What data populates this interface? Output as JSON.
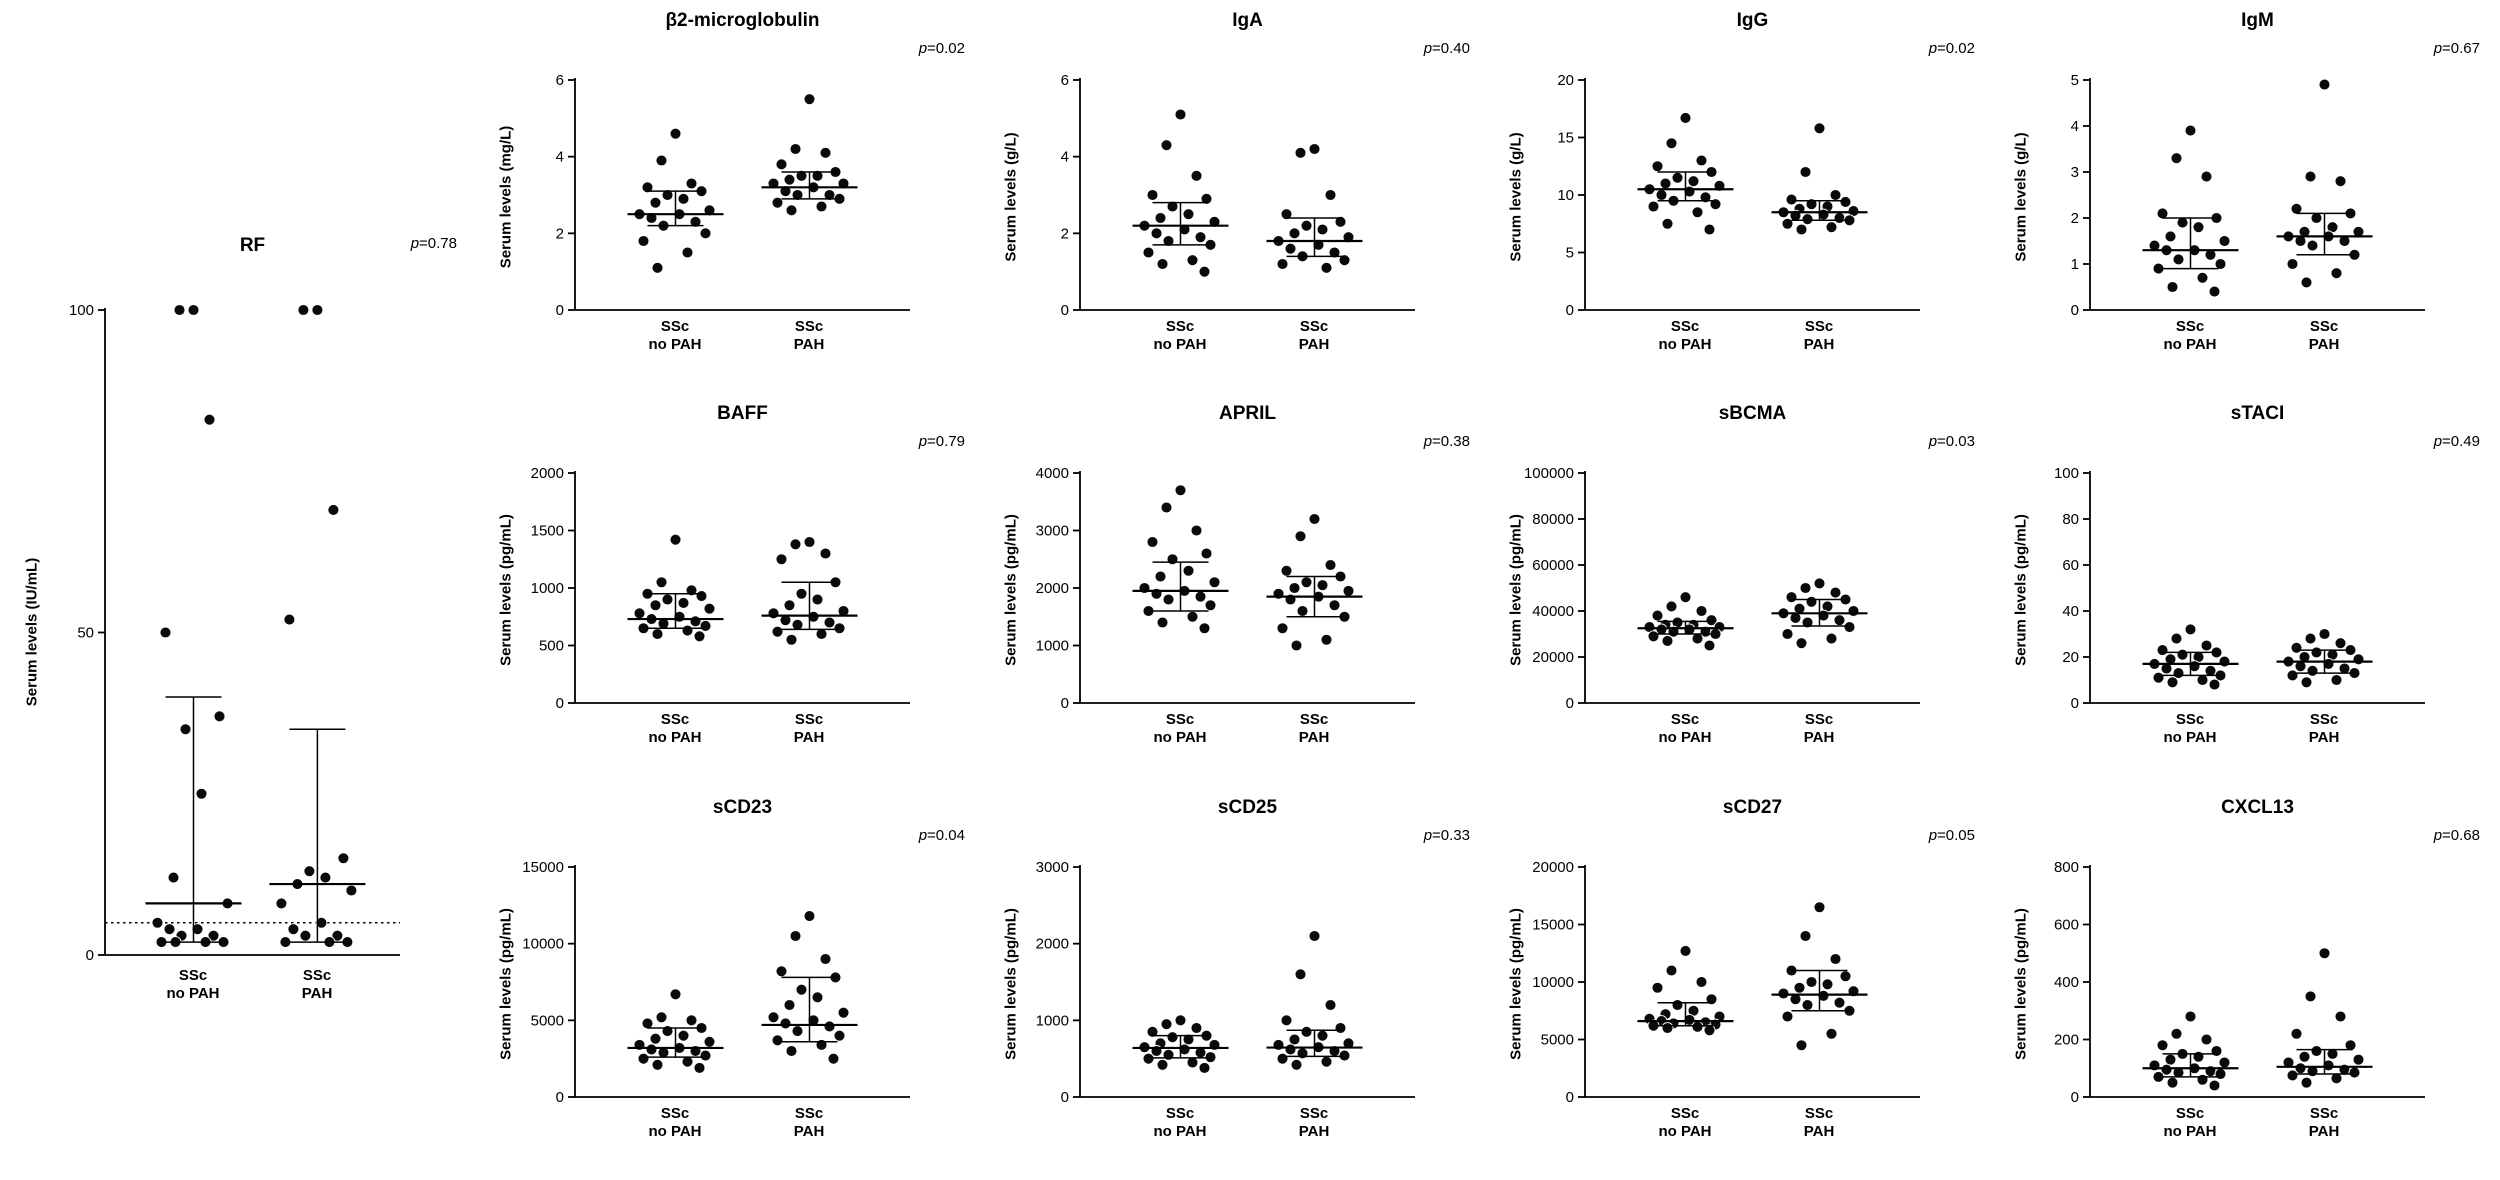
{
  "figure": {
    "background": "#ffffff",
    "point_color": "#0a0a0a",
    "x_groups": [
      {
        "line1": "SSc",
        "line2": "no PAH"
      },
      {
        "line1": "SSc",
        "line2": "PAH"
      }
    ]
  },
  "chart_data": [
    {
      "id": "rf",
      "type": "scatter",
      "title": "RF",
      "p_label": {
        "sym": "p",
        "val": "=0.78"
      },
      "ylabel": "Serum levels (IU/mL)",
      "ylim": [
        0,
        100
      ],
      "yticks": [
        0,
        50,
        100
      ],
      "threshold": 5,
      "groups": [
        {
          "label": [
            "SSc",
            "no PAH"
          ],
          "median": 8,
          "q1": 2,
          "q3": 40,
          "points": [
            100,
            100,
            83,
            50,
            37,
            35,
            25,
            12,
            8,
            5,
            4,
            4,
            3,
            3,
            2,
            2,
            2,
            2
          ]
        },
        {
          "label": [
            "SSc",
            "PAH"
          ],
          "median": 11,
          "q1": 2,
          "q3": 35,
          "points": [
            100,
            100,
            69,
            52,
            15,
            13,
            12,
            11,
            10,
            8,
            5,
            4,
            3,
            3,
            2,
            2,
            2
          ]
        }
      ]
    },
    {
      "id": "b2m",
      "type": "scatter",
      "title": "β2-microglobulin",
      "p_label": {
        "sym": "p",
        "val": "=0.02"
      },
      "ylabel": "Serum levels (mg/L)",
      "ylim": [
        0,
        6
      ],
      "yticks": [
        0,
        2,
        4,
        6
      ],
      "groups": [
        {
          "label": [
            "SSc",
            "no PAH"
          ],
          "median": 2.5,
          "q1": 2.2,
          "q3": 3.1,
          "points": [
            4.6,
            3.9,
            3.3,
            3.2,
            3.1,
            3.0,
            2.9,
            2.8,
            2.6,
            2.5,
            2.5,
            2.4,
            2.3,
            2.2,
            2.0,
            1.8,
            1.5,
            1.1
          ]
        },
        {
          "label": [
            "SSc",
            "PAH"
          ],
          "median": 3.2,
          "q1": 2.9,
          "q3": 3.6,
          "points": [
            5.5,
            4.2,
            4.1,
            3.8,
            3.6,
            3.5,
            3.5,
            3.4,
            3.3,
            3.3,
            3.2,
            3.1,
            3.0,
            3.0,
            2.9,
            2.8,
            2.7,
            2.6
          ]
        }
      ]
    },
    {
      "id": "iga",
      "type": "scatter",
      "title": "IgA",
      "p_label": {
        "sym": "p",
        "val": "=0.40"
      },
      "ylabel": "Serum levels (g/L)",
      "ylim": [
        0,
        6
      ],
      "yticks": [
        0,
        2,
        4,
        6
      ],
      "groups": [
        {
          "label": [
            "SSc",
            "no PAH"
          ],
          "median": 2.2,
          "q1": 1.7,
          "q3": 2.8,
          "points": [
            5.1,
            4.3,
            3.5,
            3.0,
            2.9,
            2.7,
            2.5,
            2.4,
            2.3,
            2.2,
            2.1,
            2.0,
            1.9,
            1.8,
            1.7,
            1.5,
            1.3,
            1.2,
            1.0
          ]
        },
        {
          "label": [
            "SSc",
            "PAH"
          ],
          "median": 1.8,
          "q1": 1.4,
          "q3": 2.4,
          "points": [
            4.2,
            4.1,
            3.0,
            2.5,
            2.3,
            2.2,
            2.1,
            2.0,
            1.9,
            1.8,
            1.7,
            1.6,
            1.5,
            1.4,
            1.3,
            1.2,
            1.1
          ]
        }
      ]
    },
    {
      "id": "igg",
      "type": "scatter",
      "title": "IgG",
      "p_label": {
        "sym": "p",
        "val": "=0.02"
      },
      "ylabel": "Serum levels (g/L)",
      "ylim": [
        0,
        20
      ],
      "yticks": [
        0,
        5,
        10,
        15,
        20
      ],
      "groups": [
        {
          "label": [
            "SSc",
            "no PAH"
          ],
          "median": 10.5,
          "q1": 9.5,
          "q3": 12.0,
          "points": [
            16.7,
            14.5,
            13.0,
            12.5,
            12.0,
            11.5,
            11.2,
            11.0,
            10.8,
            10.5,
            10.3,
            10.0,
            9.8,
            9.5,
            9.2,
            9.0,
            8.5,
            7.5,
            7.0
          ]
        },
        {
          "label": [
            "SSc",
            "PAH"
          ],
          "median": 8.5,
          "q1": 7.8,
          "q3": 9.5,
          "points": [
            15.8,
            12.0,
            10.0,
            9.6,
            9.4,
            9.2,
            9.0,
            8.8,
            8.6,
            8.5,
            8.3,
            8.2,
            8.0,
            7.9,
            7.8,
            7.5,
            7.2,
            7.0
          ]
        }
      ]
    },
    {
      "id": "igm",
      "type": "scatter",
      "title": "IgM",
      "p_label": {
        "sym": "p",
        "val": "=0.67"
      },
      "ylabel": "Serum levels (g/L)",
      "ylim": [
        0,
        5
      ],
      "yticks": [
        0,
        1,
        2,
        3,
        4,
        5
      ],
      "groups": [
        {
          "label": [
            "SSc",
            "no PAH"
          ],
          "median": 1.3,
          "q1": 0.9,
          "q3": 2.0,
          "points": [
            3.9,
            3.3,
            2.9,
            2.1,
            2.0,
            1.9,
            1.8,
            1.6,
            1.5,
            1.4,
            1.3,
            1.3,
            1.2,
            1.1,
            1.0,
            0.9,
            0.7,
            0.5,
            0.4
          ]
        },
        {
          "label": [
            "SSc",
            "PAH"
          ],
          "median": 1.6,
          "q1": 1.2,
          "q3": 2.1,
          "points": [
            4.9,
            2.9,
            2.8,
            2.2,
            2.1,
            2.0,
            1.8,
            1.7,
            1.7,
            1.6,
            1.6,
            1.5,
            1.5,
            1.4,
            1.2,
            1.0,
            0.8,
            0.6
          ]
        }
      ]
    },
    {
      "id": "baff",
      "type": "scatter",
      "title": "BAFF",
      "p_label": {
        "sym": "p",
        "val": "=0.79"
      },
      "ylabel": "Serum levels (pg/mL)",
      "ylim": [
        0,
        2000
      ],
      "yticks": [
        0,
        500,
        1000,
        1500,
        2000
      ],
      "groups": [
        {
          "label": [
            "SSc",
            "no PAH"
          ],
          "median": 730,
          "q1": 650,
          "q3": 950,
          "points": [
            1420,
            1050,
            980,
            950,
            930,
            900,
            870,
            850,
            820,
            780,
            750,
            730,
            710,
            690,
            670,
            650,
            630,
            600,
            580
          ]
        },
        {
          "label": [
            "SSc",
            "PAH"
          ],
          "median": 760,
          "q1": 640,
          "q3": 1050,
          "points": [
            1400,
            1380,
            1300,
            1250,
            1050,
            950,
            900,
            850,
            800,
            780,
            750,
            720,
            700,
            680,
            650,
            620,
            600,
            550
          ]
        }
      ]
    },
    {
      "id": "april",
      "type": "scatter",
      "title": "APRIL",
      "p_label": {
        "sym": "p",
        "val": "=0.38"
      },
      "ylabel": "Serum levels (pg/mL)",
      "ylim": [
        0,
        4000
      ],
      "yticks": [
        0,
        1000,
        2000,
        3000,
        4000
      ],
      "groups": [
        {
          "label": [
            "SSc",
            "no PAH"
          ],
          "median": 1950,
          "q1": 1600,
          "q3": 2450,
          "points": [
            3700,
            3400,
            3000,
            2800,
            2600,
            2500,
            2300,
            2200,
            2100,
            2000,
            1950,
            1900,
            1850,
            1800,
            1700,
            1600,
            1500,
            1400,
            1300
          ]
        },
        {
          "label": [
            "SSc",
            "PAH"
          ],
          "median": 1850,
          "q1": 1500,
          "q3": 2200,
          "points": [
            3200,
            2900,
            2400,
            2300,
            2200,
            2100,
            2050,
            2000,
            1950,
            1900,
            1850,
            1800,
            1700,
            1600,
            1500,
            1300,
            1100,
            1000
          ]
        }
      ]
    },
    {
      "id": "sbcma",
      "type": "scatter",
      "title": "sBCMA",
      "p_label": {
        "sym": "p",
        "val": "=0.03"
      },
      "ylabel": "Serum levels (pg/mL)",
      "ylim": [
        0,
        100000
      ],
      "yticks": [
        0,
        20000,
        40000,
        60000,
        80000,
        100000
      ],
      "groups": [
        {
          "label": [
            "SSc",
            "no PAH"
          ],
          "median": 32500,
          "q1": 30000,
          "q3": 35500,
          "points": [
            46000,
            42000,
            40000,
            38000,
            36000,
            35000,
            34000,
            34000,
            33000,
            33000,
            32000,
            32000,
            31000,
            31000,
            30000,
            29000,
            28000,
            27000,
            25000
          ]
        },
        {
          "label": [
            "SSc",
            "PAH"
          ],
          "median": 39000,
          "q1": 33500,
          "q3": 45000,
          "points": [
            52000,
            50000,
            48000,
            46000,
            45000,
            44000,
            42000,
            41000,
            40000,
            39000,
            38000,
            37000,
            36000,
            35000,
            33000,
            30000,
            28000,
            26000
          ]
        }
      ]
    },
    {
      "id": "staci",
      "type": "scatter",
      "title": "sTACI",
      "p_label": {
        "sym": "p",
        "val": "=0.49"
      },
      "ylabel": "Serum levels (pg/mL)",
      "ylim": [
        0,
        100
      ],
      "yticks": [
        0,
        20,
        40,
        60,
        80,
        100
      ],
      "groups": [
        {
          "label": [
            "SSc",
            "no PAH"
          ],
          "median": 17,
          "q1": 12,
          "q3": 22,
          "points": [
            32,
            28,
            25,
            23,
            22,
            21,
            20,
            19,
            18,
            17,
            16,
            15,
            14,
            13,
            12,
            11,
            10,
            9,
            8
          ]
        },
        {
          "label": [
            "SSc",
            "PAH"
          ],
          "median": 18,
          "q1": 13,
          "q3": 23,
          "points": [
            30,
            28,
            26,
            24,
            23,
            22,
            21,
            20,
            19,
            18,
            17,
            16,
            15,
            14,
            13,
            12,
            10,
            9
          ]
        }
      ]
    },
    {
      "id": "scd23",
      "type": "scatter",
      "title": "sCD23",
      "p_label": {
        "sym": "p",
        "val": "=0.04"
      },
      "ylabel": "Serum levels (pg/mL)",
      "ylim": [
        0,
        15000
      ],
      "yticks": [
        0,
        5000,
        10000,
        15000
      ],
      "groups": [
        {
          "label": [
            "SSc",
            "no PAH"
          ],
          "median": 3200,
          "q1": 2600,
          "q3": 4500,
          "points": [
            6700,
            5200,
            5000,
            4800,
            4500,
            4300,
            4000,
            3800,
            3600,
            3400,
            3200,
            3100,
            3000,
            2900,
            2700,
            2500,
            2300,
            2100,
            1900
          ]
        },
        {
          "label": [
            "SSc",
            "PAH"
          ],
          "median": 4700,
          "q1": 3600,
          "q3": 7800,
          "points": [
            11800,
            10500,
            9000,
            8200,
            7800,
            7000,
            6500,
            6000,
            5500,
            5200,
            5000,
            4800,
            4600,
            4300,
            4000,
            3700,
            3400,
            3000,
            2500
          ]
        }
      ]
    },
    {
      "id": "scd25",
      "type": "scatter",
      "title": "sCD25",
      "p_label": {
        "sym": "p",
        "val": "=0.33"
      },
      "ylabel": "Serum levels (pg/mL)",
      "ylim": [
        0,
        3000
      ],
      "yticks": [
        0,
        1000,
        2000,
        3000
      ],
      "groups": [
        {
          "label": [
            "SSc",
            "no PAH"
          ],
          "median": 640,
          "q1": 510,
          "q3": 800,
          "points": [
            1000,
            950,
            900,
            850,
            800,
            780,
            750,
            700,
            680,
            650,
            620,
            600,
            580,
            550,
            520,
            500,
            450,
            420,
            380
          ]
        },
        {
          "label": [
            "SSc",
            "PAH"
          ],
          "median": 645,
          "q1": 530,
          "q3": 870,
          "points": [
            2100,
            1600,
            1200,
            1000,
            900,
            850,
            800,
            750,
            700,
            680,
            650,
            620,
            600,
            570,
            540,
            500,
            460,
            420
          ]
        }
      ]
    },
    {
      "id": "scd27",
      "type": "scatter",
      "title": "sCD27",
      "p_label": {
        "sym": "p",
        "val": "=0.05"
      },
      "ylabel": "Serum levels (pg/mL)",
      "ylim": [
        0,
        20000
      ],
      "yticks": [
        0,
        5000,
        10000,
        15000,
        20000
      ],
      "groups": [
        {
          "label": [
            "SSc",
            "no PAH"
          ],
          "median": 6600,
          "q1": 6200,
          "q3": 8200,
          "points": [
            12700,
            11000,
            10000,
            9500,
            8500,
            8000,
            7500,
            7200,
            7000,
            6800,
            6700,
            6600,
            6500,
            6400,
            6300,
            6200,
            6100,
            6000,
            5800
          ]
        },
        {
          "label": [
            "SSc",
            "PAH"
          ],
          "median": 8900,
          "q1": 7500,
          "q3": 11000,
          "points": [
            16500,
            14000,
            12000,
            11000,
            10500,
            10000,
            9800,
            9500,
            9200,
            9000,
            8800,
            8500,
            8200,
            8000,
            7500,
            7000,
            5500,
            4500
          ]
        }
      ]
    },
    {
      "id": "cxcl13",
      "type": "scatter",
      "title": "CXCL13",
      "p_label": {
        "sym": "p",
        "val": "=0.68"
      },
      "ylabel": "Serum levels (pg/mL)",
      "ylim": [
        0,
        800
      ],
      "yticks": [
        0,
        200,
        400,
        600,
        800
      ],
      "groups": [
        {
          "label": [
            "SSc",
            "no PAH"
          ],
          "median": 100,
          "q1": 70,
          "q3": 150,
          "points": [
            280,
            220,
            200,
            180,
            160,
            150,
            140,
            130,
            120,
            110,
            100,
            95,
            90,
            85,
            80,
            70,
            60,
            50,
            40
          ]
        },
        {
          "label": [
            "SSc",
            "PAH"
          ],
          "median": 105,
          "q1": 80,
          "q3": 165,
          "points": [
            500,
            350,
            280,
            220,
            180,
            160,
            150,
            140,
            130,
            120,
            110,
            100,
            95,
            90,
            85,
            75,
            65,
            50
          ]
        }
      ]
    }
  ]
}
